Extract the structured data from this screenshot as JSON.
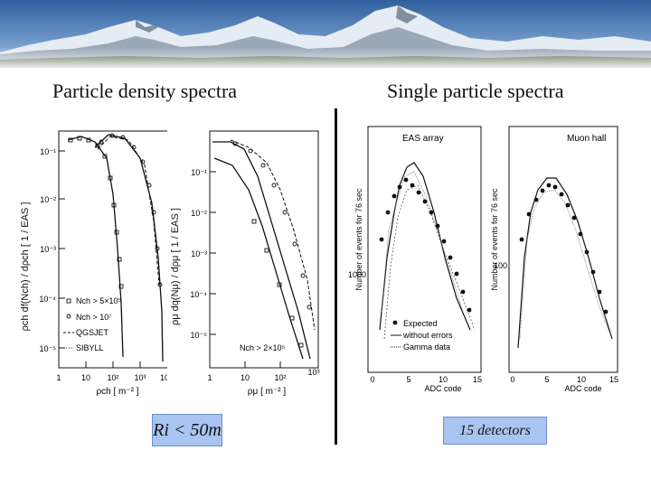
{
  "slide": {
    "heading_left": "Particle density spectra",
    "heading_right": "Single particle spectra",
    "box_left": "Ri < 50m",
    "box_right": "15 detectors",
    "box_color": "#a9c4f0"
  },
  "chart_data": [
    {
      "type": "line",
      "ylabel": "ρch df(Nch) / dρch [ 1 / EAS ]",
      "xlabel": "ρch [ m⁻² ]",
      "x_ticks": [
        "1",
        "10",
        "10²",
        "10³",
        "10⁴"
      ],
      "y_ticks": [
        "10⁻¹",
        "10⁻²",
        "10⁻³",
        "10⁻⁴",
        "10⁻⁵"
      ],
      "legend": [
        "Nch > 5×10⁵",
        "Nch > 10⁷",
        "QGSJET",
        "SIBYLL"
      ]
    },
    {
      "type": "line",
      "ylabel": "ρμ dq(Nμ) / dρμ [ 1 / EAS ]",
      "xlabel": "ρμ [ m⁻² ]",
      "x_ticks": [
        "1",
        "10",
        "10²",
        "10³"
      ],
      "y_ticks": [
        "10⁻¹",
        "10⁻²",
        "10⁻³",
        "10⁻⁴",
        "10⁻⁵"
      ],
      "annotation": "Nch > 2×10⁵"
    },
    {
      "type": "line",
      "title": "EAS array",
      "ylabel": "Number of events for 76 sec",
      "xlabel": "ADC code",
      "x_ticks": [
        "0",
        "5",
        "10",
        "15"
      ],
      "y_ticks": [
        "1000"
      ],
      "legend": [
        "Expected",
        "without errors",
        "Gamma data"
      ]
    },
    {
      "type": "line",
      "title": "Muon hall",
      "ylabel": "Number of events for 76 sec",
      "xlabel": "ADC code",
      "x_ticks": [
        "0",
        "5",
        "10",
        "15"
      ],
      "y_ticks": [
        "100"
      ]
    }
  ]
}
